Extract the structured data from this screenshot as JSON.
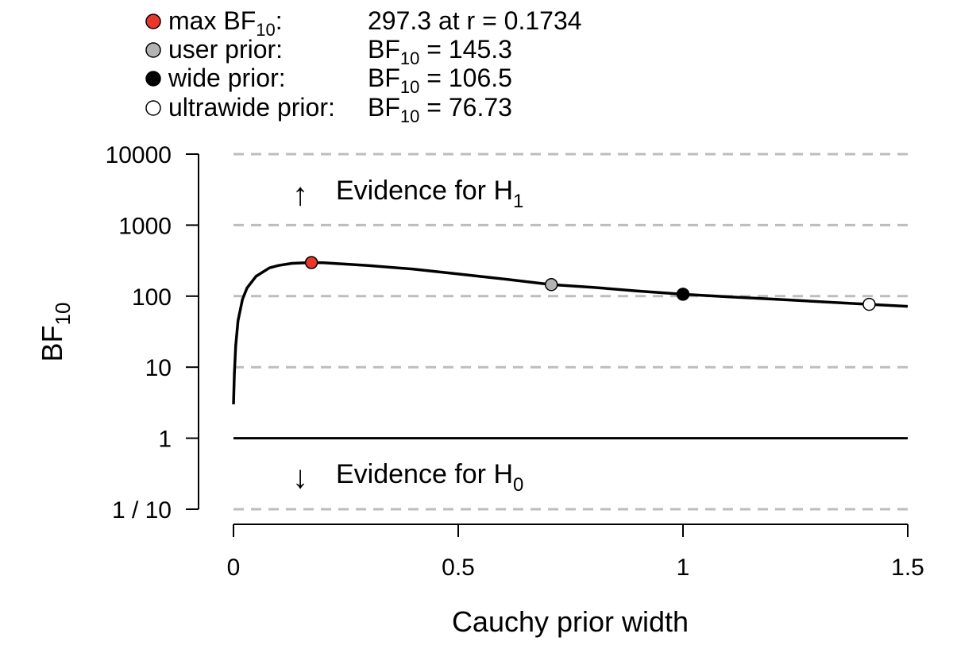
{
  "legend": {
    "items": [
      {
        "label_main": "max BF",
        "label_sub": "10",
        "label_tail": ":",
        "value_pre": "",
        "value_sub": "",
        "value": "297.3 at r = 0.1734",
        "color": "#e8372a"
      },
      {
        "label_main": "user prior:",
        "label_sub": "",
        "label_tail": "",
        "value_pre": "BF",
        "value_sub": "10",
        "value": " = 145.3",
        "color": "#b3b3b3"
      },
      {
        "label_main": "wide prior:",
        "label_sub": "",
        "label_tail": "",
        "value_pre": "BF",
        "value_sub": "10",
        "value": " = 106.5",
        "color": "#000000"
      },
      {
        "label_main": "ultrawide prior:",
        "label_sub": "",
        "label_tail": "",
        "value_pre": "BF",
        "value_sub": "10",
        "value": " = 76.73",
        "color": "#ffffff"
      }
    ]
  },
  "annotations": {
    "h1_text": "Evidence for H",
    "h1_sub": "1",
    "h0_text": "Evidence for H",
    "h0_sub": "0",
    "up_arrow": "↑",
    "down_arrow": "↓"
  },
  "chart_data": {
    "type": "line",
    "xlabel": "Cauchy prior width",
    "ylabel_main": "BF",
    "ylabel_sub": "10",
    "xlim": [
      0,
      1.5
    ],
    "ylim_log10": [
      -1,
      4
    ],
    "y_scale": "log",
    "x_ticks": [
      {
        "value": 0,
        "label": "0"
      },
      {
        "value": 0.5,
        "label": "0.5"
      },
      {
        "value": 1,
        "label": "1"
      },
      {
        "value": 1.5,
        "label": "1.5"
      }
    ],
    "y_ticks": [
      {
        "value": 10000,
        "label": "10000"
      },
      {
        "value": 1000,
        "label": "1000"
      },
      {
        "value": 100,
        "label": "100"
      },
      {
        "value": 10,
        "label": "10"
      },
      {
        "value": 1,
        "label": "1"
      },
      {
        "value": 0.1,
        "label": "1 / 10"
      }
    ],
    "grid_dashed_y": [
      10000,
      1000,
      100,
      10,
      0.1
    ],
    "reference_line_y": 1,
    "curve": {
      "x": [
        0,
        0.002,
        0.005,
        0.01,
        0.02,
        0.03,
        0.05,
        0.08,
        0.1,
        0.13,
        0.1734,
        0.2,
        0.3,
        0.4,
        0.5,
        0.6,
        0.7071,
        0.8,
        0.9,
        1.0,
        1.1,
        1.2,
        1.3,
        1.4142,
        1.5
      ],
      "y": [
        3.0,
        8.0,
        20.0,
        45.0,
        90.0,
        130.0,
        190.0,
        250.0,
        270.0,
        290.0,
        297.3,
        295.0,
        270.0,
        240.0,
        205.0,
        175.0,
        145.3,
        133.0,
        118.0,
        106.5,
        98.0,
        91.0,
        84.0,
        76.73,
        72.0
      ]
    },
    "points": [
      {
        "x": 0.1734,
        "y": 297.3,
        "color": "#e8372a"
      },
      {
        "x": 0.7071,
        "y": 145.3,
        "color": "#b3b3b3"
      },
      {
        "x": 1.0,
        "y": 106.5,
        "color": "#000000"
      },
      {
        "x": 1.4142,
        "y": 76.73,
        "color": "#ffffff"
      }
    ]
  }
}
